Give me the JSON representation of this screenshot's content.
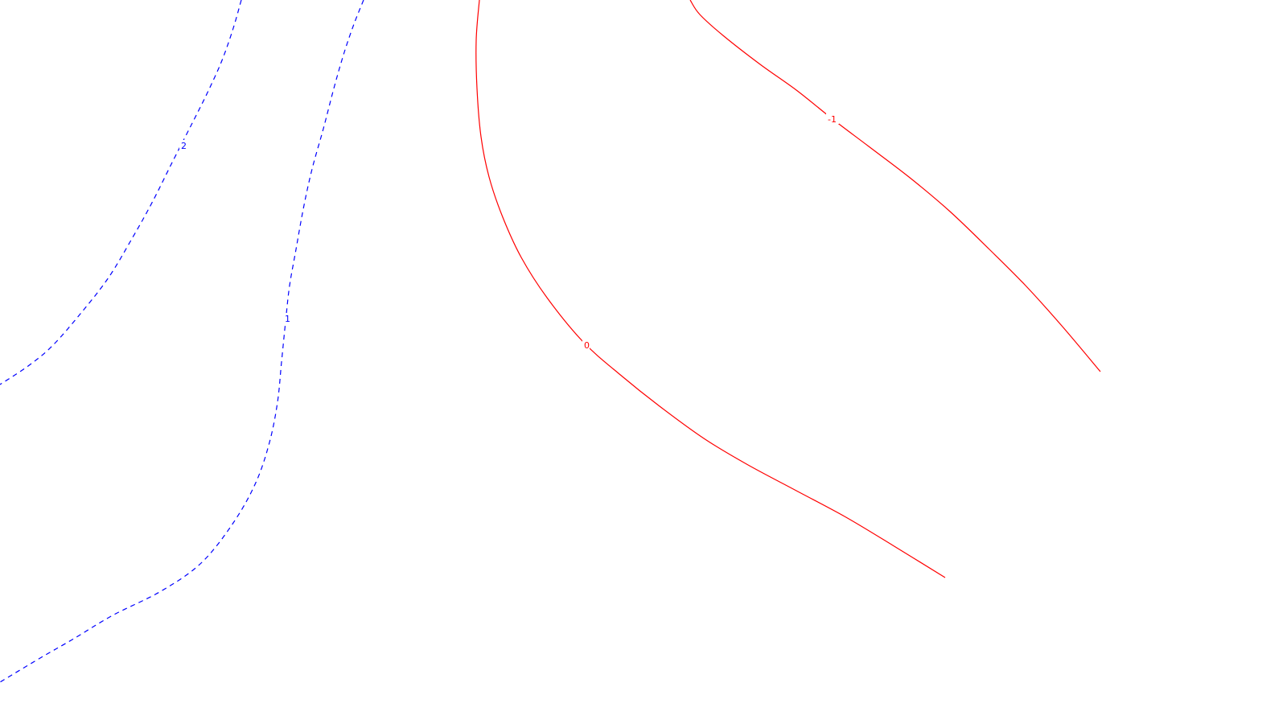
{
  "chart_data": {
    "type": "line",
    "title": "",
    "xlabel": "",
    "ylabel": "",
    "grid": false,
    "legend": "none",
    "series": [
      {
        "level_label": "2",
        "color": "#0000ff",
        "line_style": "dashed",
        "points": [
          [
            300,
            0
          ],
          [
            290,
            35
          ],
          [
            276,
            75
          ],
          [
            258,
            115
          ],
          [
            238,
            155
          ],
          [
            215,
            200
          ],
          [
            190,
            250
          ],
          [
            165,
            295
          ],
          [
            135,
            345
          ],
          [
            100,
            390
          ],
          [
            65,
            430
          ],
          [
            35,
            455
          ],
          [
            0,
            478
          ]
        ]
      },
      {
        "level_label": "1",
        "color": "#0000ff",
        "line_style": "dashed",
        "points": [
          [
            452,
            0
          ],
          [
            440,
            30
          ],
          [
            428,
            65
          ],
          [
            415,
            110
          ],
          [
            402,
            160
          ],
          [
            388,
            210
          ],
          [
            377,
            260
          ],
          [
            368,
            310
          ],
          [
            360,
            355
          ],
          [
            355,
            400
          ],
          [
            350,
            450
          ],
          [
            345,
            500
          ],
          [
            335,
            550
          ],
          [
            318,
            600
          ],
          [
            290,
            650
          ],
          [
            250,
            700
          ],
          [
            200,
            735
          ],
          [
            140,
            765
          ],
          [
            90,
            795
          ],
          [
            50,
            818
          ],
          [
            0,
            848
          ]
        ]
      },
      {
        "level_label": "0",
        "color": "#ff0000",
        "line_style": "solid",
        "points": [
          [
            596,
            0
          ],
          [
            592,
            50
          ],
          [
            593,
            110
          ],
          [
            598,
            170
          ],
          [
            608,
            220
          ],
          [
            625,
            270
          ],
          [
            648,
            320
          ],
          [
            680,
            370
          ],
          [
            725,
            425
          ],
          [
            770,
            465
          ],
          [
            820,
            505
          ],
          [
            875,
            545
          ],
          [
            930,
            578
          ],
          [
            990,
            610
          ],
          [
            1050,
            642
          ],
          [
            1110,
            678
          ],
          [
            1175,
            718
          ]
        ]
      },
      {
        "level_label": "-1",
        "color": "#ff0000",
        "line_style": "solid",
        "points": [
          [
            858,
            0
          ],
          [
            870,
            18
          ],
          [
            900,
            45
          ],
          [
            945,
            80
          ],
          [
            990,
            112
          ],
          [
            1035,
            148
          ],
          [
            1080,
            182
          ],
          [
            1130,
            220
          ],
          [
            1180,
            262
          ],
          [
            1230,
            310
          ],
          [
            1275,
            355
          ],
          [
            1320,
            405
          ],
          [
            1368,
            462
          ]
        ]
      }
    ]
  }
}
